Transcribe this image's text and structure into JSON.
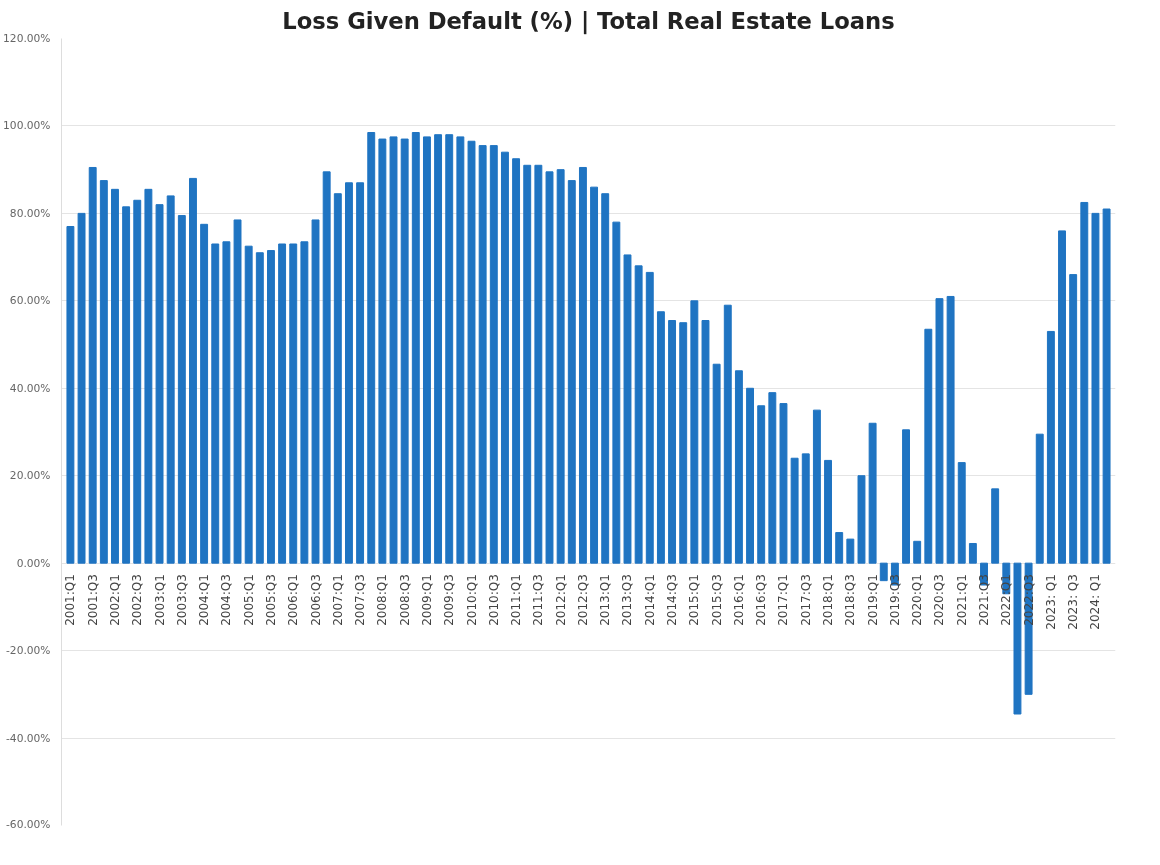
{
  "chart_data": {
    "type": "bar",
    "title": "Loss Given Default (%) | Total Real Estate Loans",
    "categories": [
      "2001:Q1",
      null,
      "2001:Q3",
      null,
      "2002:Q1",
      null,
      "2002:Q3",
      null,
      "2003:Q1",
      null,
      "2003:Q3",
      null,
      "2004:Q1",
      null,
      "2004:Q3",
      null,
      "2005:Q1",
      null,
      "2005:Q3",
      null,
      "2006:Q1",
      null,
      "2006:Q3",
      null,
      "2007:Q1",
      null,
      "2007:Q3",
      null,
      "2008:Q1",
      null,
      "2008:Q3",
      null,
      "2009:Q1",
      null,
      "2009:Q3",
      null,
      "2010:Q1",
      null,
      "2010:Q3",
      null,
      "2011:Q1",
      null,
      "2011:Q3",
      null,
      "2012:Q1",
      null,
      "2012:Q3",
      null,
      "2013:Q1",
      null,
      "2013:Q3",
      null,
      "2014:Q1",
      null,
      "2014:Q3",
      null,
      "2015:Q1",
      null,
      "2015:Q3",
      null,
      "2016:Q1",
      null,
      "2016:Q3",
      null,
      "2017:Q1",
      null,
      "2017:Q3",
      null,
      "2018:Q1",
      null,
      "2018:Q3",
      null,
      "2019:Q1",
      null,
      "2019:Q3",
      null,
      "2020:Q1",
      null,
      "2020:Q3",
      null,
      "2021:Q1",
      null,
      "2021:Q3",
      null,
      "2022:Q1",
      null,
      "2022:Q3",
      null,
      "2023: Q1",
      null,
      "2023: Q3",
      null,
      "2024: Q1",
      null
    ],
    "values": [
      77,
      80,
      90.5,
      87.5,
      85.5,
      81.5,
      83,
      85.5,
      82,
      84,
      79.5,
      88,
      77.5,
      73,
      73.5,
      78.5,
      72.5,
      71,
      71.5,
      73,
      73,
      73.5,
      78.5,
      89.5,
      84.5,
      87,
      87,
      98.5,
      97,
      97.5,
      97,
      98.5,
      97.5,
      98,
      98,
      97.5,
      96.5,
      95.5,
      95.5,
      94,
      92.5,
      91,
      91,
      89.5,
      90,
      87.5,
      90.5,
      86,
      84.5,
      78,
      70.5,
      68,
      66.5,
      57.5,
      55.5,
      55,
      60,
      55.5,
      45.5,
      59,
      44,
      40,
      36,
      39,
      36.5,
      24,
      25,
      35,
      23.5,
      7,
      5.5,
      20,
      32,
      -4,
      -5,
      30.5,
      5,
      53.5,
      60.5,
      61,
      23,
      4.5,
      -5,
      17,
      -7,
      -34.5,
      -30,
      29.5,
      53,
      76,
      66,
      82.5,
      80,
      81
    ],
    "color": "#1f74c2",
    "ylim": [
      -60,
      120
    ],
    "yticks": [
      {
        "value": -60,
        "label": "-60.00%"
      },
      {
        "value": -40,
        "label": "-40.00%"
      },
      {
        "value": -20,
        "label": "-20.00%"
      },
      {
        "value": 0,
        "label": "0.00%"
      },
      {
        "value": 20,
        "label": "20.00%"
      },
      {
        "value": 40,
        "label": "40.00%"
      },
      {
        "value": 60,
        "label": "60.00%"
      },
      {
        "value": 80,
        "label": "80.00%"
      },
      {
        "value": 100,
        "label": "100.00%"
      },
      {
        "value": 120,
        "label": "120.00%"
      }
    ],
    "grid": "y"
  }
}
